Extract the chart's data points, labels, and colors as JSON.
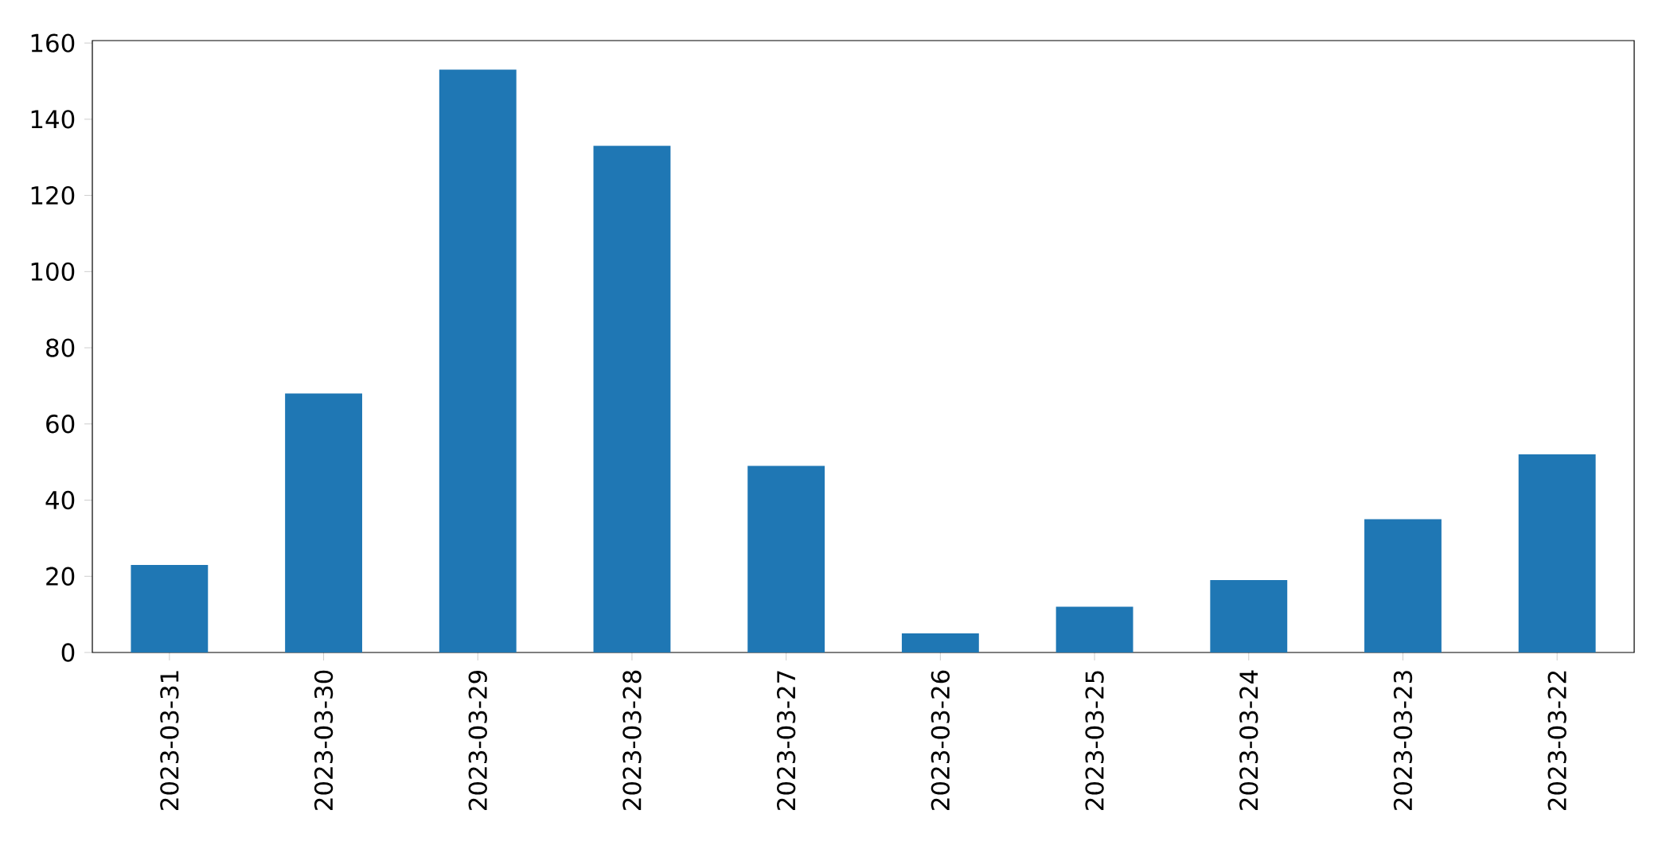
{
  "chart_data": {
    "type": "bar",
    "categories": [
      "2023-03-31",
      "2023-03-30",
      "2023-03-29",
      "2023-03-28",
      "2023-03-27",
      "2023-03-26",
      "2023-03-25",
      "2023-03-24",
      "2023-03-23",
      "2023-03-22"
    ],
    "values": [
      23,
      68,
      153,
      133,
      49,
      5,
      12,
      19,
      35,
      52
    ],
    "color": "#1f77b4",
    "ylim": [
      0,
      160.65
    ],
    "yticks": [
      0,
      20,
      40,
      60,
      80,
      100,
      120,
      140,
      160
    ]
  }
}
